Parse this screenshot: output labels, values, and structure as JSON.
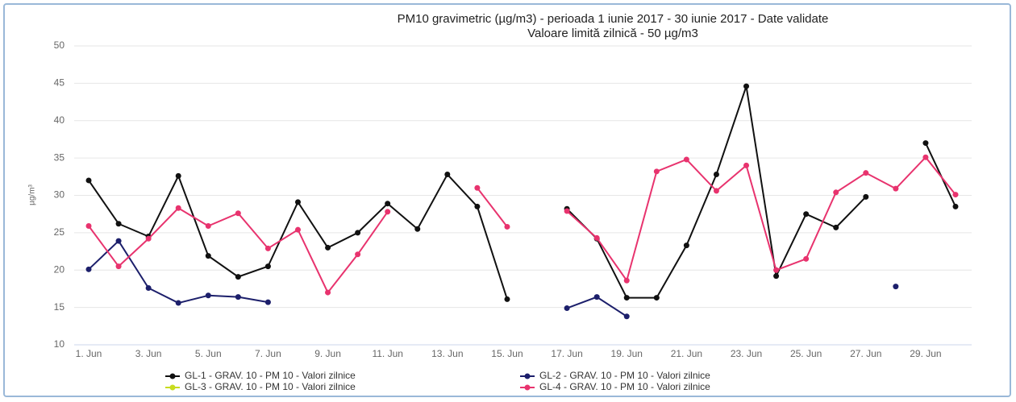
{
  "chart_data": {
    "type": "line",
    "title": "PM10 gravimetric (µg/m3) - perioada 1 iunie 2017 - 30 iunie 2017 - Date validate",
    "subtitle": "Valoare limită zilnică - 50 µg/m3",
    "y_label": "µg/m³",
    "categories": [
      "1. Jun",
      null,
      "3. Jun",
      null,
      "5. Jun",
      null,
      "7. Jun",
      null,
      "9. Jun",
      null,
      "11. Jun",
      null,
      "13. Jun",
      null,
      "15. Jun",
      null,
      "17. Jun",
      null,
      "19. Jun",
      null,
      "21. Jun",
      null,
      "23. Jun",
      null,
      "25. Jun",
      null,
      "27. Jun",
      null,
      "29. Jun",
      null
    ],
    "series": [
      {
        "name": "GL-1 - GRAV. 10 - PM 10 - Valori zilnice",
        "color": "#111111",
        "values": [
          32,
          26.2,
          24.5,
          32.6,
          21.9,
          19.1,
          20.5,
          29.1,
          23,
          25,
          28.9,
          25.5,
          32.8,
          28.5,
          16.1,
          null,
          28.2,
          24.2,
          16.3,
          16.3,
          23.3,
          32.8,
          44.6,
          19.2,
          27.5,
          25.7,
          29.8,
          null,
          37,
          28.5
        ]
      },
      {
        "name": "GL-2 - GRAV. 10 - PM 10 - Valori zilnice",
        "color": "#1c1f6b",
        "values": [
          20.1,
          23.9,
          17.6,
          15.6,
          16.6,
          16.4,
          15.7,
          null,
          null,
          null,
          null,
          null,
          null,
          null,
          null,
          null,
          14.9,
          16.4,
          13.8,
          null,
          null,
          null,
          null,
          null,
          null,
          null,
          null,
          17.8,
          null,
          null
        ]
      },
      {
        "name": "GL-3 - GRAV. 10 - PM 10 - Valori zilnice",
        "color": "#c8dc1e",
        "values": [
          null,
          null,
          null,
          null,
          null,
          null,
          null,
          null,
          null,
          null,
          null,
          null,
          null,
          null,
          null,
          null,
          null,
          null,
          null,
          null,
          null,
          null,
          null,
          null,
          null,
          null,
          null,
          null,
          null,
          null
        ]
      },
      {
        "name": "GL-4 - GRAV. 10 - PM 10 - Valori zilnice",
        "color": "#e8336e",
        "values": [
          25.9,
          20.5,
          24.2,
          28.3,
          25.9,
          27.6,
          22.9,
          25.4,
          17,
          22.1,
          27.8,
          null,
          null,
          31,
          25.8,
          null,
          27.9,
          24.3,
          18.6,
          33.2,
          34.8,
          30.6,
          34,
          20,
          21.5,
          30.4,
          33,
          30.9,
          35.1,
          30.1
        ]
      }
    ],
    "ylim": [
      10,
      50
    ],
    "yticks": [
      10,
      15,
      20,
      25,
      30,
      35,
      40,
      45,
      50
    ],
    "grid": true
  }
}
